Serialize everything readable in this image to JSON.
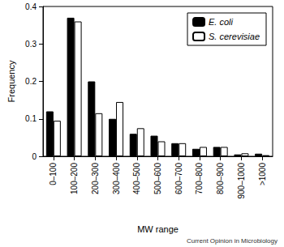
{
  "chart_data": {
    "type": "bar",
    "categories": [
      "0–100",
      "100–200",
      "200–300",
      "300–400",
      "400–500",
      "500–600",
      "600–700",
      "700–800",
      "800–900",
      "900–1000",
      ">1000"
    ],
    "series": [
      {
        "name": "E. coli",
        "color": "#000000",
        "values": [
          0.12,
          0.37,
          0.2,
          0.1,
          0.06,
          0.055,
          0.035,
          0.02,
          0.025,
          0.005,
          0.007
        ]
      },
      {
        "name": "S. cerevisiae",
        "color": "#ffffff",
        "values": [
          0.095,
          0.36,
          0.115,
          0.145,
          0.075,
          0.04,
          0.035,
          0.025,
          0.025,
          0.008,
          0.003
        ]
      }
    ],
    "x_label": "MW range",
    "y_label": "Frequency",
    "ylim": [
      0,
      0.4
    ],
    "yticks": [
      0,
      0.1,
      0.2,
      0.3,
      0.4
    ],
    "annotation": "Current Opinion in Microbiology",
    "legend": "upper right",
    "grid": false
  }
}
